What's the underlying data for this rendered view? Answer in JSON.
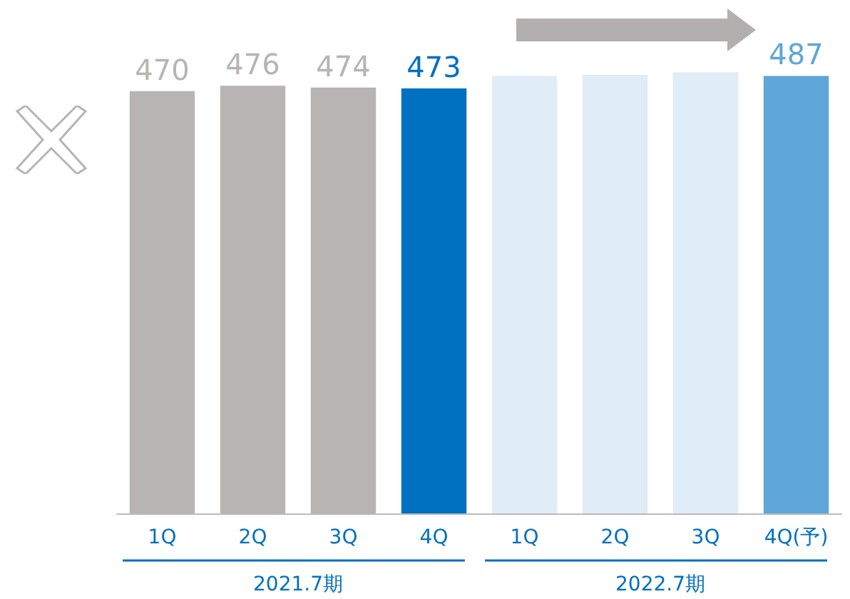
{
  "chart_data": {
    "type": "bar",
    "categories": [
      "1Q",
      "2Q",
      "3Q",
      "4Q",
      "1Q",
      "2Q",
      "3Q",
      "4Q(予)"
    ],
    "values": [
      470,
      476,
      474,
      473,
      487,
      488,
      491,
      487
    ],
    "colors": [
      "#b8b4b3",
      "#b8b4b3",
      "#b8b4b3",
      "#0070c0",
      "#e0ecf7",
      "#e0ecf7",
      "#e0ecf7",
      "#5ea7d8"
    ],
    "value_labels": [
      "470",
      "476",
      "474",
      "473",
      null,
      null,
      null,
      "487"
    ],
    "annotations": [
      "2021.7期",
      "2022.7期"
    ]
  }
}
